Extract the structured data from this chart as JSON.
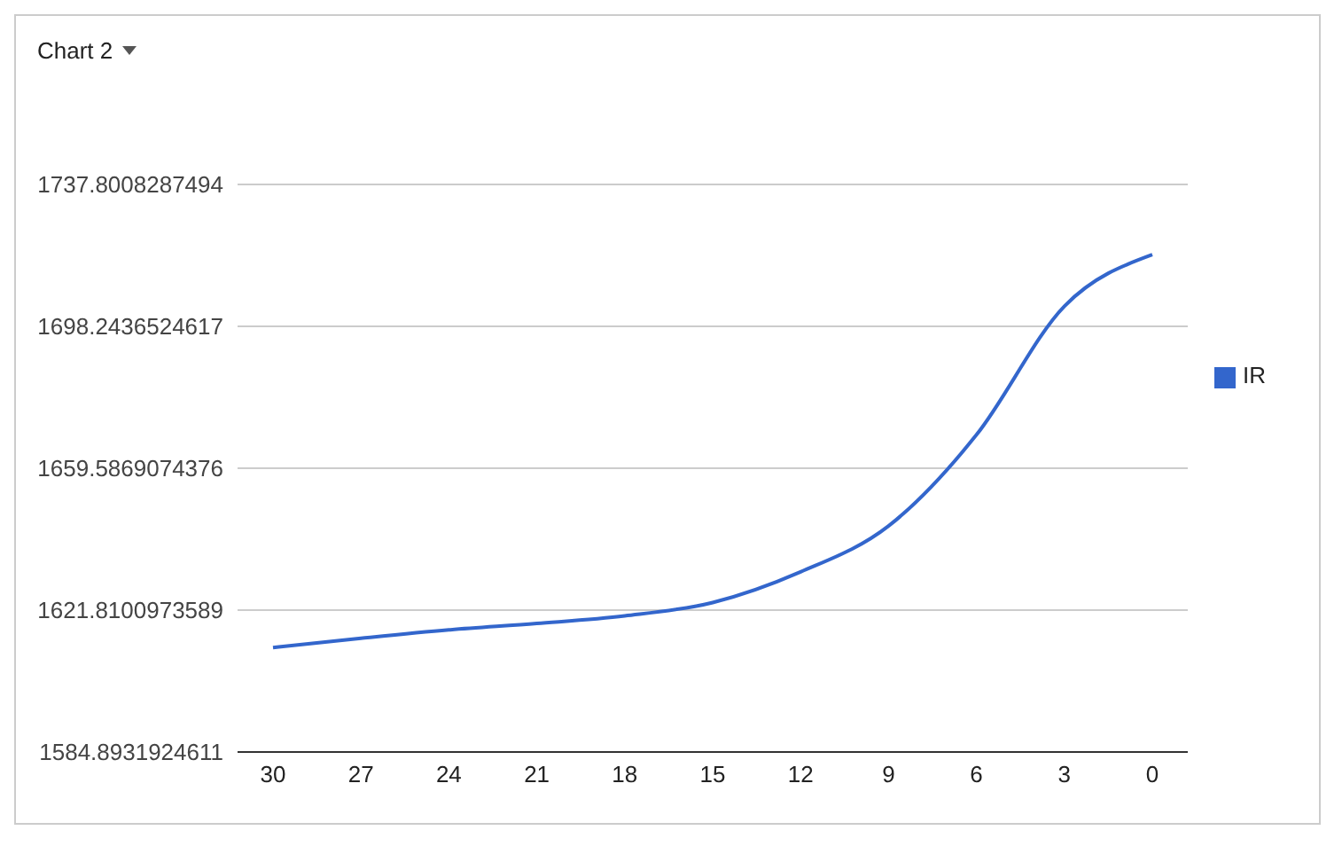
{
  "chart_data": {
    "type": "line",
    "title": "Chart 2",
    "categories": [
      "30",
      "27",
      "24",
      "21",
      "18",
      "15",
      "12",
      "9",
      "6",
      "3",
      "0"
    ],
    "series": [
      {
        "name": "IR",
        "color": "#3366cc",
        "values": [
          1612.0,
          1614.4,
          1616.6,
          1618.3,
          1620.3,
          1623.8,
          1631.9,
          1644.1,
          1668.6,
          1703.8,
          1718.1
        ]
      }
    ],
    "log": true,
    "ylim": [
      1584.8931924611,
      1737.8008287494
    ],
    "yticks": [
      1584.8931924611,
      1621.8100973589,
      1659.5869074376,
      1698.2436524617,
      1737.8008287494
    ],
    "grid": "y",
    "legend": "top right",
    "marker": "none"
  }
}
